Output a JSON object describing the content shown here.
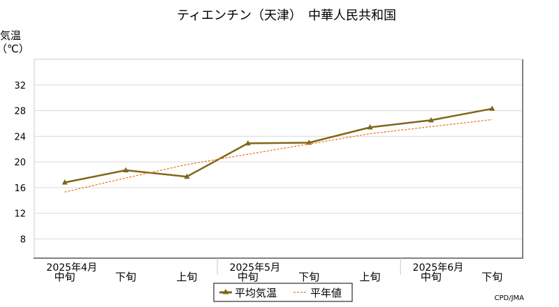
{
  "chart_data": {
    "type": "line",
    "title": "ティエンチン（天津）　中華人民共和国",
    "ylabel_line1": "気温",
    "ylabel_line2": "（℃）",
    "ylim": [
      5,
      36
    ],
    "yticks": [
      8,
      12,
      16,
      20,
      24,
      28,
      32
    ],
    "grid": true,
    "categories": [
      "中旬",
      "下旬",
      "上旬",
      "中旬",
      "下旬",
      "上旬",
      "中旬",
      "下旬"
    ],
    "month_labels": [
      "2025年4月",
      "2025年5月",
      "2025年6月"
    ],
    "series": [
      {
        "name": "平均気温",
        "color": "#806618",
        "style": "solid",
        "marker": "triangle",
        "values": [
          16.8,
          18.7,
          17.7,
          22.9,
          23.0,
          25.4,
          26.5,
          28.3
        ]
      },
      {
        "name": "平年値",
        "color": "#ee7722",
        "style": "dashed",
        "marker": "none",
        "values": [
          15.3,
          17.5,
          19.6,
          21.2,
          22.8,
          24.4,
          25.5,
          26.6
        ]
      }
    ],
    "legend_position": "bottom-center",
    "credit": "CPD/JMA"
  }
}
